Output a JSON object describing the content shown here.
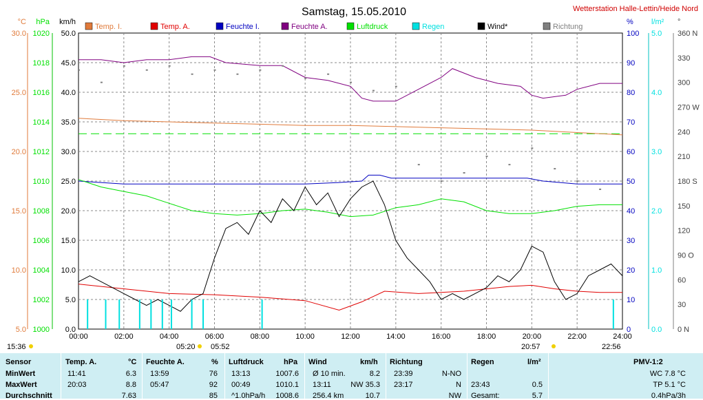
{
  "title": "Samstag, 15.05.2010",
  "station": "Wetterstation Halle-Lettin/Heide Nord",
  "colors": {
    "temp_i": "#e07a3a",
    "temp_a": "#e00000",
    "hum_i": "#0000c0",
    "hum_a": "#800080",
    "pressure": "#00e000",
    "rain": "#00e0e0",
    "wind": "#000000",
    "direction": "#808080"
  },
  "axis_units": {
    "temp": "°C",
    "pressure": "hPa",
    "wind": "km/h",
    "humidity": "%",
    "rain": "l/m²",
    "direction": "°"
  },
  "legend": [
    {
      "label": "Temp. I.",
      "color": "#e07a3a"
    },
    {
      "label": "Temp. A.",
      "color": "#e00000"
    },
    {
      "label": "Feuchte I.",
      "color": "#0000c0"
    },
    {
      "label": "Feuchte A.",
      "color": "#800080"
    },
    {
      "label": "Luftdruck",
      "color": "#00e000"
    },
    {
      "label": "Regen",
      "color": "#00e0e0"
    },
    {
      "label": "Wind*",
      "color": "#000000"
    },
    {
      "label": "Richtung",
      "color": "#808080"
    }
  ],
  "sun": {
    "rise_label": "05:20",
    "rise2_label": "05:52",
    "set_label": "20:57",
    "set2_label": "22:56",
    "left_label": "15:36"
  },
  "chart_data": {
    "type": "line",
    "x_unit": "hours",
    "x_ticks": [
      "00:00",
      "02:00",
      "04:00",
      "06:00",
      "08:00",
      "10:00",
      "12:00",
      "14:00",
      "16:00",
      "18:00",
      "20:00",
      "22:00",
      "24:00"
    ],
    "xlim": [
      0,
      24
    ],
    "axes": {
      "temp_c": {
        "ticks": [
          "5.0",
          "10.0",
          "15.0",
          "20.0",
          "25.0",
          "30.0"
        ],
        "range": [
          5,
          30
        ]
      },
      "pressure_hpa": {
        "ticks": [
          "1000",
          "1002",
          "1004",
          "1006",
          "1008",
          "1010",
          "1012",
          "1014",
          "1016",
          "1018",
          "1020"
        ],
        "range": [
          1000,
          1020
        ]
      },
      "wind_kmh": {
        "ticks": [
          "0.0",
          "5.0",
          "10.0",
          "15.0",
          "20.0",
          "25.0",
          "30.0",
          "35.0",
          "40.0",
          "45.0",
          "50.0"
        ],
        "range": [
          0,
          50
        ]
      },
      "humidity_pct": {
        "ticks": [
          "0",
          "10",
          "20",
          "30",
          "40",
          "50",
          "60",
          "70",
          "80",
          "90",
          "100"
        ],
        "range": [
          0,
          100
        ]
      },
      "rain_lm2": {
        "ticks": [
          "0.0",
          "1.0",
          "2.0",
          "3.0",
          "4.0",
          "5.0"
        ],
        "range": [
          0,
          5
        ]
      },
      "direction_deg": {
        "ticks": [
          "0 N",
          "30",
          "60",
          "90 O",
          "120",
          "150",
          "180 S",
          "210",
          "240",
          "270 W",
          "300",
          "330",
          "360 N"
        ],
        "range": [
          0,
          360
        ]
      }
    },
    "series": [
      {
        "name": "Temp. I.",
        "axis": "temp_c",
        "x": [
          0,
          2,
          4,
          6,
          8,
          10,
          12,
          14,
          16,
          18,
          20,
          22,
          24
        ],
        "y": [
          22.8,
          22.6,
          22.5,
          22.4,
          22.3,
          22.2,
          22.2,
          22.1,
          22.0,
          21.9,
          21.8,
          21.6,
          21.4
        ]
      },
      {
        "name": "Temp. A.",
        "axis": "temp_c",
        "x": [
          0,
          2,
          4,
          6,
          8,
          10,
          11.5,
          12.5,
          13.5,
          15,
          17,
          19,
          20,
          21,
          22,
          23,
          24
        ],
        "y": [
          8.8,
          8.4,
          8.0,
          7.9,
          7.7,
          7.4,
          6.6,
          7.3,
          8.2,
          8.0,
          8.2,
          8.6,
          8.7,
          8.4,
          8.2,
          8.1,
          8.1
        ]
      },
      {
        "name": "Feuchte I.",
        "axis": "humidity_pct",
        "x": [
          0,
          2,
          4,
          6,
          8,
          10,
          11.5,
          12.5,
          12.8,
          13.3,
          13.8,
          14.2,
          16,
          18,
          19.8,
          20.5,
          22,
          23,
          24
        ],
        "y": [
          50,
          49,
          49,
          49,
          49,
          49,
          49.5,
          50,
          52,
          52,
          51,
          51,
          51,
          51,
          51,
          50,
          49,
          49,
          49
        ]
      },
      {
        "name": "Feuchte A.",
        "axis": "humidity_pct",
        "x": [
          0,
          1,
          2,
          3,
          4,
          5,
          5.8,
          6.5,
          8,
          9,
          10,
          11,
          12,
          12.5,
          13,
          14,
          15,
          16,
          16.5,
          17.5,
          18.5,
          19.5,
          20,
          20.5,
          21.5,
          22,
          23,
          24
        ],
        "y": [
          91,
          91,
          90,
          91,
          91,
          92,
          92,
          90,
          89,
          89,
          85,
          84,
          82,
          78,
          77,
          77,
          81,
          85,
          88,
          85,
          83,
          82,
          79,
          78,
          79,
          81,
          83,
          83
        ]
      },
      {
        "name": "Luftdruck",
        "axis": "pressure_hpa",
        "x": [
          0,
          1,
          2,
          3,
          4,
          5,
          6,
          7,
          8,
          9,
          10,
          11,
          12,
          13,
          14,
          15,
          16,
          17,
          18,
          19,
          20,
          21,
          22,
          23,
          24
        ],
        "y": [
          1010.1,
          1009.6,
          1009.3,
          1009.0,
          1008.5,
          1008.0,
          1007.8,
          1007.7,
          1007.8,
          1008.0,
          1008.1,
          1007.9,
          1007.6,
          1007.7,
          1008.2,
          1008.4,
          1008.8,
          1008.6,
          1008.0,
          1007.8,
          1007.8,
          1008.0,
          1008.3,
          1008.4,
          1008.4
        ]
      },
      {
        "name": "Wind*",
        "axis": "wind_kmh",
        "x": [
          0,
          0.5,
          1,
          1.5,
          2,
          2.5,
          3,
          3.5,
          4,
          4.5,
          5,
          5.5,
          6,
          6.5,
          7,
          7.5,
          8,
          8.5,
          9,
          9.5,
          10,
          10.5,
          11,
          11.5,
          12,
          12.5,
          13,
          13.5,
          14,
          14.5,
          15,
          15.5,
          16,
          16.5,
          17,
          17.5,
          18,
          18.5,
          19,
          19.5,
          20,
          20.5,
          21,
          21.5,
          22,
          22.5,
          23,
          23.5,
          24
        ],
        "y": [
          8,
          9,
          8,
          7,
          6,
          5,
          4,
          5,
          4,
          3,
          5,
          6,
          12,
          17,
          18,
          16,
          20,
          18,
          22,
          20,
          24,
          21,
          23,
          19,
          22,
          24,
          25,
          21,
          15,
          12,
          10,
          8,
          5,
          6,
          5,
          6,
          7,
          9,
          8,
          10,
          14,
          13,
          8,
          5,
          6,
          9,
          10,
          11,
          9
        ]
      },
      {
        "name": "Regen",
        "axis": "rain_lm2",
        "type": "bar",
        "x": [
          0.4,
          1.2,
          1.8,
          2.7,
          3.2,
          3.7,
          4.1,
          5.0,
          5.5,
          8.1,
          23.6
        ],
        "y": [
          0.5,
          0.5,
          0.5,
          0.5,
          0.5,
          0.5,
          0.5,
          0.5,
          0.5,
          0.5,
          0.5
        ]
      },
      {
        "name": "Richtung",
        "axis": "direction_deg",
        "type": "scatter",
        "x": [
          0,
          1,
          2,
          3,
          4,
          5,
          6,
          7,
          8,
          9,
          10,
          11,
          12,
          13,
          14,
          15,
          16,
          17,
          18,
          19,
          20,
          21,
          22,
          23
        ],
        "y": [
          315,
          300,
          320,
          315,
          320,
          310,
          315,
          310,
          315,
          320,
          305,
          310,
          300,
          290,
          295,
          200,
          180,
          190,
          210,
          200,
          220,
          195,
          180,
          170
        ]
      }
    ],
    "reference_line": {
      "axis": "humidity_pct",
      "value": 66
    }
  },
  "table": {
    "headers": {
      "sensor": "Sensor",
      "temp": "Temp. A.",
      "temp_unit": "°C",
      "hum": "Feuchte A.",
      "hum_unit": "%",
      "press": "Luftdruck",
      "press_unit": "hPa",
      "wind": "Wind",
      "wind_unit": "km/h",
      "dir": "Richtung",
      "rain": "Regen",
      "rain_unit": "l/m²",
      "pmv": "PMV-1:2"
    },
    "rows": [
      {
        "label": "MinWert",
        "temp_t": "11:41",
        "temp_v": "6.3",
        "hum_t": "13:59",
        "hum_v": "76",
        "press_t": "13:13",
        "press_v": "1007.6",
        "wind_t": "Ø 10 min.",
        "wind_v": "8.2",
        "dir_t": "23:39",
        "dir_v": "N-NO",
        "rain_t": "",
        "rain_v": "",
        "pmv": "WC 7.8 °C"
      },
      {
        "label": "MaxWert",
        "temp_t": "20:03",
        "temp_v": "8.8",
        "hum_t": "05:47",
        "hum_v": "92",
        "press_t": "00:49",
        "press_v": "1010.1",
        "wind_t": "13:11",
        "wind_v": "NW 35.3",
        "dir_t": "23:17",
        "dir_v": "N",
        "rain_t": "23:43",
        "rain_v": "0.5",
        "pmv": "TP 5.1 °C"
      },
      {
        "label": "Durchschnitt",
        "temp_t": "",
        "temp_v": "7.63",
        "hum_t": "",
        "hum_v": "85",
        "press_t": "^1.0hPa/h",
        "press_v": "1008.6",
        "wind_t": "256.4 km",
        "wind_v": "10.7",
        "dir_t": "",
        "dir_v": "NW",
        "rain_t": "Gesamt:",
        "rain_v": "5.7",
        "pmv": "0.4hPa/3h"
      }
    ]
  }
}
